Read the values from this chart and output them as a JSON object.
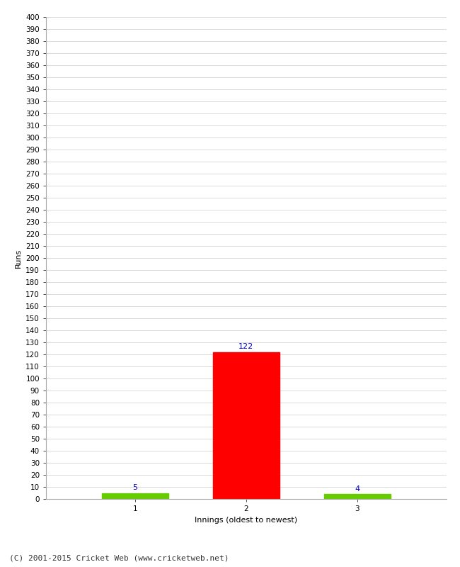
{
  "categories": [
    "1",
    "2",
    "3"
  ],
  "values": [
    5,
    122,
    4
  ],
  "bar_colors": [
    "#66cc00",
    "#ff0000",
    "#66cc00"
  ],
  "xlabel": "Innings (oldest to newest)",
  "ylabel": "Runs",
  "ylim": [
    0,
    400
  ],
  "background_color": "#ffffff",
  "footer": "(C) 2001-2015 Cricket Web (www.cricketweb.net)",
  "value_color": "#0000cc",
  "value_fontsize": 8,
  "axis_label_fontsize": 8,
  "tick_fontsize": 7.5,
  "footer_fontsize": 8,
  "bar_width": 0.6
}
